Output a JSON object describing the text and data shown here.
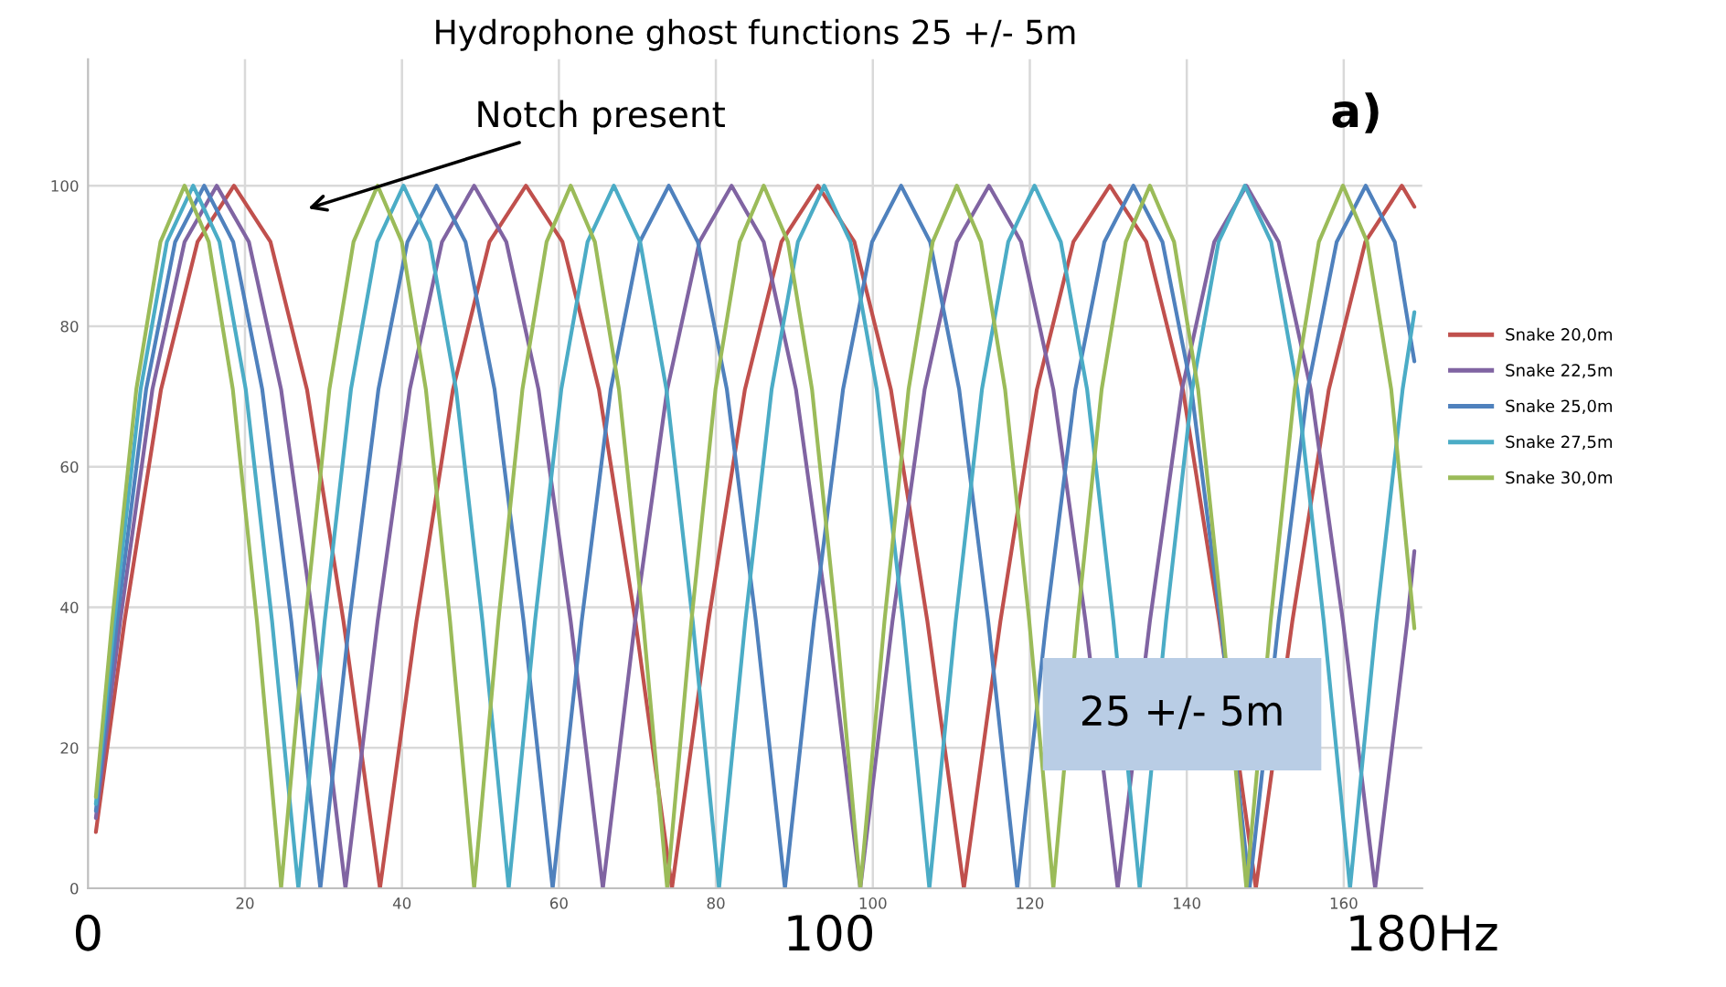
{
  "chart_data": {
    "type": "line",
    "title": "Hydrophone ghost functions 25 +/- 5m",
    "xlim": [
      0,
      170
    ],
    "xticks": [
      20,
      40,
      60,
      80,
      100,
      120,
      140,
      160
    ],
    "x2lim": [
      0,
      180
    ],
    "x2ticks": [
      0,
      100,
      {
        "value": 180,
        "label": "180Hz"
      }
    ],
    "ylim": [
      0,
      118
    ],
    "yticks": [
      0,
      20,
      40,
      60,
      80,
      100
    ],
    "grid": true,
    "legend": "right",
    "marker": "none",
    "line_style": "solid",
    "annotations": [
      "Notch present",
      "a)",
      "25 +/- 5m"
    ],
    "series": [
      {
        "name": "Snake 20,0m",
        "color": "#c0504d",
        "x": [
          1,
          4.65,
          9.3,
          13.95,
          18.6,
          23.25,
          27.9,
          32.55,
          37.2,
          41.85,
          46.5,
          51.15,
          55.8,
          60.45,
          65.1,
          69.75,
          74.4,
          79.05,
          83.7,
          88.35,
          93,
          97.65,
          102.3,
          106.95,
          111.6,
          116.25,
          120.9,
          125.55,
          130.2,
          134.85,
          139.5,
          144.15,
          148.8,
          153.45,
          158.1,
          162.75,
          167.4,
          169
        ],
        "values": [
          8,
          38,
          71,
          92,
          100,
          92,
          71,
          38,
          0,
          38,
          71,
          92,
          100,
          92,
          71,
          38,
          0,
          38,
          71,
          92,
          100,
          92,
          71,
          38,
          0,
          38,
          71,
          92,
          100,
          92,
          71,
          38,
          0,
          38,
          71,
          92,
          100,
          97
        ]
      },
      {
        "name": "Snake 22,5m",
        "color": "#8064a2",
        "x": [
          1,
          4.1,
          8.2,
          12.3,
          16.4,
          20.5,
          24.6,
          28.7,
          32.8,
          36.9,
          41,
          45.1,
          49.2,
          53.3,
          57.4,
          61.5,
          65.6,
          69.7,
          73.8,
          77.9,
          82,
          86.1,
          90.2,
          94.3,
          98.4,
          102.5,
          106.6,
          110.7,
          114.8,
          118.9,
          123,
          127.1,
          131.2,
          135.3,
          139.4,
          143.5,
          147.6,
          151.7,
          155.8,
          159.9,
          164,
          168.1,
          169
        ],
        "values": [
          10,
          38,
          71,
          92,
          100,
          92,
          71,
          38,
          0,
          38,
          71,
          92,
          100,
          92,
          71,
          38,
          0,
          38,
          71,
          92,
          100,
          92,
          71,
          38,
          0,
          38,
          71,
          92,
          100,
          92,
          71,
          38,
          0,
          38,
          71,
          92,
          100,
          92,
          71,
          38,
          0,
          38,
          48
        ]
      },
      {
        "name": "Snake 25,0m",
        "color": "#4f81bd",
        "x": [
          1,
          3.7,
          7.4,
          11.1,
          14.8,
          18.5,
          22.2,
          25.9,
          29.6,
          33.3,
          37,
          40.7,
          44.4,
          48.1,
          51.8,
          55.5,
          59.2,
          62.9,
          66.6,
          70.3,
          74,
          77.7,
          81.4,
          85.1,
          88.8,
          92.5,
          96.2,
          99.9,
          103.6,
          107.3,
          111,
          114.7,
          118.4,
          122.1,
          125.8,
          129.5,
          133.2,
          136.9,
          140.6,
          144.3,
          148,
          151.7,
          155.4,
          159.1,
          162.8,
          166.5,
          169
        ],
        "values": [
          11,
          38,
          71,
          92,
          100,
          92,
          71,
          38,
          0,
          38,
          71,
          92,
          100,
          92,
          71,
          38,
          0,
          38,
          71,
          92,
          100,
          92,
          71,
          38,
          0,
          38,
          71,
          92,
          100,
          92,
          71,
          38,
          0,
          38,
          71,
          92,
          100,
          92,
          71,
          38,
          0,
          38,
          71,
          92,
          100,
          92,
          75
        ]
      },
      {
        "name": "Snake 27,5m",
        "color": "#4bacc6",
        "x": [
          1,
          3.35,
          6.7,
          10.05,
          13.4,
          16.75,
          20.1,
          23.45,
          26.8,
          30.15,
          33.5,
          36.85,
          40.2,
          43.55,
          46.9,
          50.25,
          53.6,
          56.95,
          60.3,
          63.65,
          67,
          70.35,
          73.7,
          77.05,
          80.4,
          83.75,
          87.1,
          90.45,
          93.8,
          97.15,
          100.5,
          103.85,
          107.2,
          110.55,
          113.9,
          117.25,
          120.6,
          123.95,
          127.3,
          130.65,
          134,
          137.35,
          140.7,
          144.05,
          147.4,
          150.75,
          154.1,
          157.45,
          160.8,
          164.15,
          167.5,
          169
        ],
        "values": [
          12,
          38,
          71,
          92,
          100,
          92,
          71,
          38,
          0,
          38,
          71,
          92,
          100,
          92,
          71,
          38,
          0,
          38,
          71,
          92,
          100,
          92,
          71,
          38,
          0,
          38,
          71,
          92,
          100,
          92,
          71,
          38,
          0,
          38,
          71,
          92,
          100,
          92,
          71,
          38,
          0,
          38,
          71,
          92,
          100,
          92,
          71,
          38,
          0,
          38,
          71,
          82
        ]
      },
      {
        "name": "Snake 30,0m",
        "color": "#9bbb59",
        "x": [
          1,
          3.08,
          6.15,
          9.23,
          12.3,
          15.38,
          18.45,
          21.53,
          24.6,
          27.68,
          30.75,
          33.83,
          36.9,
          39.98,
          43.05,
          46.13,
          49.2,
          52.28,
          55.35,
          58.43,
          61.5,
          64.58,
          67.65,
          70.73,
          73.8,
          76.88,
          79.95,
          83.03,
          86.1,
          89.18,
          92.25,
          95.33,
          98.4,
          101.48,
          104.55,
          107.63,
          110.7,
          113.78,
          116.85,
          119.93,
          123,
          126.08,
          129.15,
          132.23,
          135.3,
          138.38,
          141.45,
          144.53,
          147.6,
          150.68,
          153.75,
          156.83,
          159.9,
          162.98,
          166.05,
          169
        ],
        "values": [
          13,
          38,
          71,
          92,
          100,
          92,
          71,
          38,
          0,
          38,
          71,
          92,
          100,
          92,
          71,
          38,
          0,
          38,
          71,
          92,
          100,
          92,
          71,
          38,
          0,
          38,
          71,
          92,
          100,
          92,
          71,
          38,
          0,
          38,
          71,
          92,
          100,
          92,
          71,
          38,
          0,
          38,
          71,
          92,
          100,
          92,
          71,
          38,
          0,
          38,
          71,
          92,
          100,
          92,
          71,
          37
        ]
      }
    ]
  }
}
